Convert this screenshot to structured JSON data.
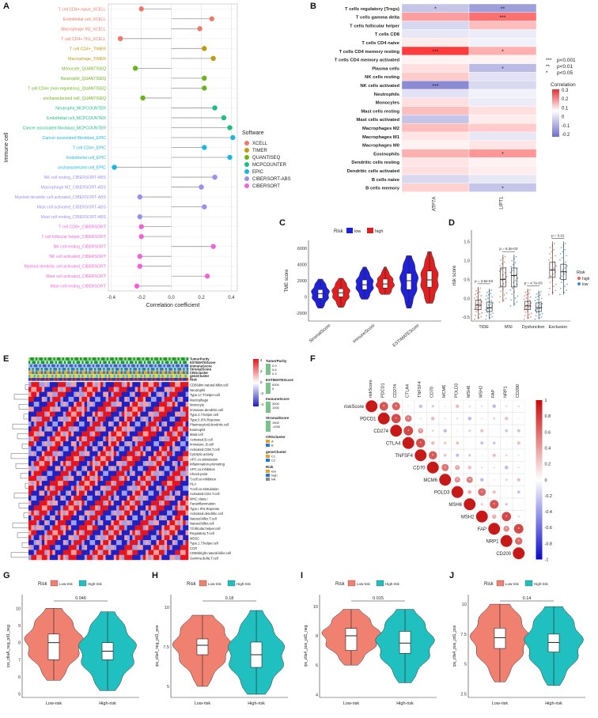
{
  "panel_labels": {
    "A": "A",
    "B": "B",
    "C": "C",
    "D": "D",
    "E": "E",
    "F": "F",
    "G": "G",
    "H": "H",
    "I": "I",
    "J": "J"
  },
  "chart_data": [
    {
      "id": "A",
      "type": "scatter",
      "xlabel": "Correlation coefficient",
      "ylabel": "Immune cell",
      "xlim": [
        -0.42,
        0.44
      ],
      "xticks": [
        -0.4,
        -0.2,
        0.0,
        0.2,
        0.4
      ],
      "grid": true,
      "legend": {
        "title": "Software",
        "position": "right"
      },
      "software_colors": {
        "XCELL": "#f0786b",
        "TIMER": "#bf9b10",
        "QUANTISEQ": "#6ab318",
        "MCPCOUNTER": "#1bbf86",
        "EPIC": "#17b9e3",
        "CIBERSORT-ABS": "#9a8ef0",
        "CIBERSORT": "#f462d8"
      },
      "software_order": [
        "XCELL",
        "TIMER",
        "QUANTISEQ",
        "MCPCOUNTER",
        "EPIC",
        "CIBERSORT-ABS",
        "CIBERSORT"
      ],
      "points": [
        {
          "label": "T cell CD4+ naive_XCELL",
          "software": "XCELL",
          "value": -0.2
        },
        {
          "label": "Endothelial cell_XCELL",
          "software": "XCELL",
          "value": 0.27
        },
        {
          "label": "Macrophage M2_XCELL",
          "software": "XCELL",
          "value": 0.19
        },
        {
          "label": "T cell CD4+ Th1_XCELL",
          "software": "XCELL",
          "value": -0.34
        },
        {
          "label": "T cell CD4+_TIMER",
          "software": "TIMER",
          "value": 0.22
        },
        {
          "label": "Macrophage_TIMER",
          "software": "TIMER",
          "value": 0.28
        },
        {
          "label": "Monocyte_QUANTISEQ",
          "software": "QUANTISEQ",
          "value": -0.24
        },
        {
          "label": "Neutrophil_QUANTISEQ",
          "software": "QUANTISEQ",
          "value": 0.22
        },
        {
          "label": "T cell CD4+ (non-regulatory)_QUANTISEQ",
          "software": "QUANTISEQ",
          "value": 0.22
        },
        {
          "label": "uncharacterized cell_QUANTISEQ",
          "software": "QUANTISEQ",
          "value": -0.19
        },
        {
          "label": "Neutrophil_MCPCOUNTER",
          "software": "MCPCOUNTER",
          "value": 0.29
        },
        {
          "label": "Endothelial cell_MCPCOUNTER",
          "software": "MCPCOUNTER",
          "value": 0.35
        },
        {
          "label": "Cancer associated fibroblast_MCPCOUNTER",
          "software": "MCPCOUNTER",
          "value": 0.39
        },
        {
          "label": "Cancer associated fibroblast_EPIC",
          "software": "EPIC",
          "value": 0.41
        },
        {
          "label": "T cell CD4+_EPIC",
          "software": "EPIC",
          "value": 0.22
        },
        {
          "label": "Endothelial cell_EPIC",
          "software": "EPIC",
          "value": 0.39
        },
        {
          "label": "uncharacterized cell_EPIC",
          "software": "EPIC",
          "value": -0.38
        },
        {
          "label": "NK cell resting_CIBERSORT-ABS",
          "software": "CIBERSORT-ABS",
          "value": 0.29
        },
        {
          "label": "Macrophage M2_CIBERSORT-ABS",
          "software": "CIBERSORT-ABS",
          "value": 0.2
        },
        {
          "label": "Myeloid dendritic cell activated_CIBERSORT-ABS",
          "software": "CIBERSORT-ABS",
          "value": -0.21
        },
        {
          "label": "Mast cell activated_CIBERSORT-ABS",
          "software": "CIBERSORT-ABS",
          "value": 0.22
        },
        {
          "label": "Mast cell resting_CIBERSORT-ABS",
          "software": "CIBERSORT-ABS",
          "value": -0.21
        },
        {
          "label": "T cell CD8+_CIBERSORT",
          "software": "CIBERSORT",
          "value": -0.2
        },
        {
          "label": "T cell follicular helper_CIBERSORT",
          "software": "CIBERSORT",
          "value": -0.2
        },
        {
          "label": "NK cell resting_CIBERSORT",
          "software": "CIBERSORT",
          "value": 0.28
        },
        {
          "label": "NK cell activated_CIBERSORT",
          "software": "CIBERSORT",
          "value": -0.21
        },
        {
          "label": "Myeloid dendritic cell activated_CIBERSORT",
          "software": "CIBERSORT",
          "value": -0.21
        },
        {
          "label": "Mast cell activated_CIBERSORT",
          "software": "CIBERSORT",
          "value": 0.24
        },
        {
          "label": "Mast cell resting_CIBERSORT",
          "software": "CIBERSORT",
          "value": -0.23
        }
      ]
    },
    {
      "id": "B",
      "type": "heatmap",
      "rows": [
        "T cells regulatory (Tregs)",
        "T cells gamma delta",
        "T cells follicular helper",
        "T cells CD8",
        "T cells CD4 naive",
        "T cells CD4 memory resting",
        "T cells CD4 memory activated",
        "Plasma cells",
        "NK cells resting",
        "NK cells activated",
        "Neutrophils",
        "Monocytes",
        "Mast cells resting",
        "Mast cells activated",
        "Macrophages M2",
        "Macrophages M1",
        "Macrophages M0",
        "Eosinophils",
        "Dendritic cells resting",
        "Dendritic cells activated",
        "B cells naive",
        "B cells memory"
      ],
      "columns": [
        "ATP7A",
        "LIPT1"
      ],
      "values": [
        [
          -0.12,
          -0.2
        ],
        [
          0.15,
          0.22
        ],
        [
          -0.08,
          0.1
        ],
        [
          -0.05,
          -0.04
        ],
        [
          0.03,
          -0.03
        ],
        [
          0.33,
          0.12
        ],
        [
          0.02,
          0.02
        ],
        [
          0.05,
          -0.14
        ],
        [
          0.08,
          -0.06
        ],
        [
          -0.24,
          -0.08
        ],
        [
          -0.06,
          -0.03
        ],
        [
          0.05,
          -0.04
        ],
        [
          0.1,
          0.05
        ],
        [
          -0.12,
          0.03
        ],
        [
          0.1,
          0.08
        ],
        [
          0.04,
          -0.05
        ],
        [
          0.02,
          0.04
        ],
        [
          0.12,
          0.16
        ],
        [
          0.04,
          0.02
        ],
        [
          0.05,
          0.03
        ],
        [
          -0.08,
          -0.05
        ],
        [
          0.07,
          -0.12
        ]
      ],
      "stars": [
        [
          "*",
          "**"
        ],
        [
          "",
          "***"
        ],
        [
          "",
          ""
        ],
        [
          "",
          ""
        ],
        [
          "",
          ""
        ],
        [
          "***",
          "*"
        ],
        [
          "",
          ""
        ],
        [
          "",
          "*"
        ],
        [
          "",
          ""
        ],
        [
          "***",
          ""
        ],
        [
          "",
          ""
        ],
        [
          "",
          ""
        ],
        [
          "",
          ""
        ],
        [
          "",
          ""
        ],
        [
          "",
          ""
        ],
        [
          "",
          ""
        ],
        [
          "",
          ""
        ],
        [
          "",
          "*"
        ],
        [
          "",
          ""
        ],
        [
          "",
          ""
        ],
        [
          "",
          ""
        ],
        [
          "",
          "*"
        ]
      ],
      "sig_legend": [
        {
          "stars": "***",
          "text": "p<0.001"
        },
        {
          "stars": "**",
          "text": "p<0.01"
        },
        {
          "stars": "*",
          "text": "p<0.05"
        }
      ],
      "colorbar": {
        "title": "Correlation",
        "ticks": [
          "0.3",
          "0.2",
          "0.1",
          "0",
          "-0.1",
          "-0.2"
        ],
        "range": [
          -0.25,
          0.35
        ]
      }
    },
    {
      "id": "C",
      "type": "violin",
      "ylabel": "TME score",
      "ylim": [
        -3000,
        7000
      ],
      "yticks": [
        -2000,
        0,
        2000,
        4000,
        6000
      ],
      "categories": [
        "StromalScore",
        "ImmuneScore",
        "ESTIMATEScore"
      ],
      "legend": {
        "title": "Risk",
        "items": [
          "low",
          "high"
        ],
        "position": "top"
      },
      "colors": {
        "low": "#2020d8",
        "high": "#e02020"
      },
      "series": [
        {
          "name": "low",
          "medians": [
            400,
            1500,
            2000
          ],
          "q1": [
            -200,
            900,
            900
          ],
          "q3": [
            900,
            2100,
            2900
          ],
          "min": [
            -1400,
            -300,
            -1400
          ],
          "max": [
            2200,
            3700,
            5100
          ]
        },
        {
          "name": "high",
          "medians": [
            500,
            1600,
            2100
          ],
          "q1": [
            0,
            1100,
            1200
          ],
          "q3": [
            1000,
            2200,
            3200
          ],
          "min": [
            -1300,
            300,
            -800
          ],
          "max": [
            2300,
            3700,
            5600
          ]
        }
      ]
    },
    {
      "id": "D",
      "type": "box",
      "ylabel": "risk score",
      "ylim": [
        -0.6,
        1.8
      ],
      "yticks": [
        -0.5,
        0.0,
        0.5,
        1.0,
        1.5
      ],
      "categories": [
        "TIDE",
        "MSI",
        "Dysfunction",
        "Exclusion"
      ],
      "legend": {
        "title": "Risk",
        "items": [
          "high",
          "low"
        ],
        "position": "right"
      },
      "colors": {
        "high": "#e8604c",
        "low": "#3a8fc8"
      },
      "pvalues": [
        "p = 2.6e-03",
        "p = 6.3e-03",
        "p = 4.7e-03",
        "p = 0.01"
      ],
      "series": [
        {
          "name": "high",
          "medians": [
            -0.18,
            0.5,
            -0.2,
            0.75
          ],
          "q1": [
            -0.3,
            0.3,
            -0.3,
            0.55
          ],
          "q3": [
            -0.05,
            0.8,
            -0.08,
            0.95
          ],
          "min": [
            -0.55,
            -0.1,
            -0.55,
            0.1
          ],
          "max": [
            0.3,
            1.15,
            0.25,
            1.5
          ]
        },
        {
          "name": "low",
          "medians": [
            -0.25,
            0.6,
            -0.25,
            0.7
          ],
          "q1": [
            -0.35,
            0.3,
            -0.35,
            0.5
          ],
          "q3": [
            -0.1,
            0.8,
            -0.12,
            0.9
          ],
          "min": [
            -0.55,
            -0.2,
            -0.55,
            0.1
          ],
          "max": [
            0.25,
            1.15,
            0.2,
            1.5
          ]
        }
      ]
    },
    {
      "id": "E",
      "type": "heatmap",
      "annotation_rows": [
        "TumorPurity",
        "ESTIMATEScore",
        "ImmuneScore",
        "StromalScore",
        "CRGcluster",
        "geneCluster",
        "Risk"
      ],
      "rows": [
        "CD56dim.natural.killer.cell",
        "Neutrophil",
        "Type.17.T.helper.cell",
        "Macrophage",
        "Monocyte",
        "Immature.dendritic.cell",
        "Type.2.T.helper.cell",
        "Type.II.IFN.Reponse",
        "Plasmacytoid.dendritic.cell",
        "Eosinophil",
        "Mast.cell",
        "Activated.B.cell",
        "Immature..B.cell",
        "Activated.CD8.T.cell",
        "Cytolytic.activity",
        "APC.co.stimulation",
        "Inflammation-promoting",
        "APC.co.inhibition",
        "Check-point",
        "T.cell.co-inhibition",
        "HLA",
        "T.cell.co-stimulation",
        "Activated.CD4.T.cell",
        "MHC.class.I",
        "Parainflammation",
        "Type.I.IFN.Reponse",
        "Activated.dendritic.cell",
        "Natural.killer.T.cell",
        "Natural.killer.cell",
        "T.follicular.helper.cell",
        "Regulatory.T.cell",
        "MDSC",
        "Type.1.T.helper.cell",
        "CCR",
        "CD56bright.natural.killer.cell",
        "Gamma.delta.T.cell"
      ],
      "legends": [
        {
          "title": "TumorPurity",
          "ticks": [
            "0.9",
            "0.6",
            "0.3"
          ]
        },
        {
          "title": "ESTIMATEScore",
          "ticks": [
            "5000",
            "0"
          ]
        },
        {
          "title": "ImmuneScore",
          "ticks": [
            "3000",
            "1000"
          ]
        },
        {
          "title": "StromalScore",
          "ticks": [
            "1500",
            "-1000"
          ]
        },
        {
          "title": "CRGcluster",
          "items": [
            "A",
            "B"
          ]
        },
        {
          "title": "geneCluster",
          "items": [
            "C1",
            "C2"
          ]
        },
        {
          "title": "Risk",
          "items": [
            "low",
            "high",
            "NA"
          ]
        }
      ],
      "colorbar_ticks": [
        "4",
        "2",
        "0",
        "-2",
        "-4"
      ]
    },
    {
      "id": "F",
      "type": "heatmap",
      "variables": [
        "riskScore",
        "PDCD1",
        "CD274",
        "CTLA4",
        "TNFSF4",
        "CD70",
        "MCM6",
        "POLD3",
        "MSH6",
        "MSH2",
        "FAP",
        "NRP1",
        "CD200"
      ],
      "colorbar_ticks": [
        "1",
        "0.8",
        "0.6",
        "0.4",
        "0.2",
        "0",
        "-0.2",
        "-0.4",
        "-0.6",
        "-0.8",
        "-1"
      ]
    },
    {
      "id": "G",
      "type": "violin",
      "ylabel": "ips_ctlaA_neg_pd1_neg",
      "ylim": [
        4.8,
        10.8
      ],
      "yticks": [
        5,
        6,
        7,
        8,
        9,
        10
      ],
      "categories": [
        "Low-risk",
        "High-risk"
      ],
      "pvalue": "0.046",
      "legend": {
        "title": "Risk",
        "items": [
          "Low-risk",
          "High-risk"
        ],
        "position": "top"
      },
      "colors": {
        "Low-risk": "#f08070",
        "High-risk": "#20c0c0"
      },
      "medians": [
        8.0,
        7.5
      ],
      "q1": [
        7.0,
        7.0
      ],
      "q3": [
        8.5,
        8.0
      ],
      "min": [
        5.8,
        5.2
      ],
      "max": [
        10.0,
        9.8
      ]
    },
    {
      "id": "H",
      "type": "violin",
      "ylabel": "ips_ctla4_neg_pd1_pos",
      "ylim": [
        4.3,
        10.8
      ],
      "yticks": [
        5.0,
        7.5,
        10.0
      ],
      "categories": [
        "Low-risk",
        "High-risk"
      ],
      "pvalue": "0.18",
      "legend": {
        "title": "Risk",
        "items": [
          "Low-risk",
          "High-risk"
        ],
        "position": "top"
      },
      "colors": {
        "Low-risk": "#f08070",
        "High-risk": "#20c0c0"
      },
      "medians": [
        7.6,
        7.0
      ],
      "q1": [
        7.0,
        6.2
      ],
      "q3": [
        8.0,
        7.8
      ],
      "min": [
        5.0,
        4.5
      ],
      "max": [
        9.5,
        9.8
      ]
    },
    {
      "id": "I",
      "type": "violin",
      "ylabel": "ips_ctla4_pos_pd1_neg",
      "ylim": [
        3.8,
        10.8
      ],
      "yticks": [
        4,
        6,
        8,
        10
      ],
      "categories": [
        "Low-risk",
        "High-risk"
      ],
      "pvalue": "0.015",
      "legend": {
        "title": "Risk",
        "items": [
          "Low-risk",
          "High-risk"
        ],
        "position": "top"
      },
      "colors": {
        "Low-risk": "#f08070",
        "High-risk": "#20c0c0"
      },
      "medians": [
        8.0,
        7.5
      ],
      "q1": [
        7.0,
        6.8
      ],
      "q3": [
        8.5,
        8.3
      ],
      "min": [
        6.0,
        4.8
      ],
      "max": [
        9.8,
        9.8
      ]
    },
    {
      "id": "J",
      "type": "violin",
      "ylabel": "ips_ctla4_pos_pd1_pos",
      "ylim": [
        2.2,
        10.8
      ],
      "yticks": [
        2.5,
        5.0,
        7.5,
        10.0
      ],
      "categories": [
        "Low-risk",
        "High-risk"
      ],
      "pvalue": "0.14",
      "legend": {
        "title": "Risk",
        "items": [
          "Low-risk",
          "High-risk"
        ],
        "position": "top"
      },
      "colors": {
        "Low-risk": "#f08070",
        "High-risk": "#20c0c0"
      },
      "medians": [
        7.2,
        6.8
      ],
      "q1": [
        6.3,
        6.0
      ],
      "q3": [
        8.0,
        7.5
      ],
      "min": [
        3.5,
        3.2
      ],
      "max": [
        10.0,
        9.8
      ]
    }
  ]
}
